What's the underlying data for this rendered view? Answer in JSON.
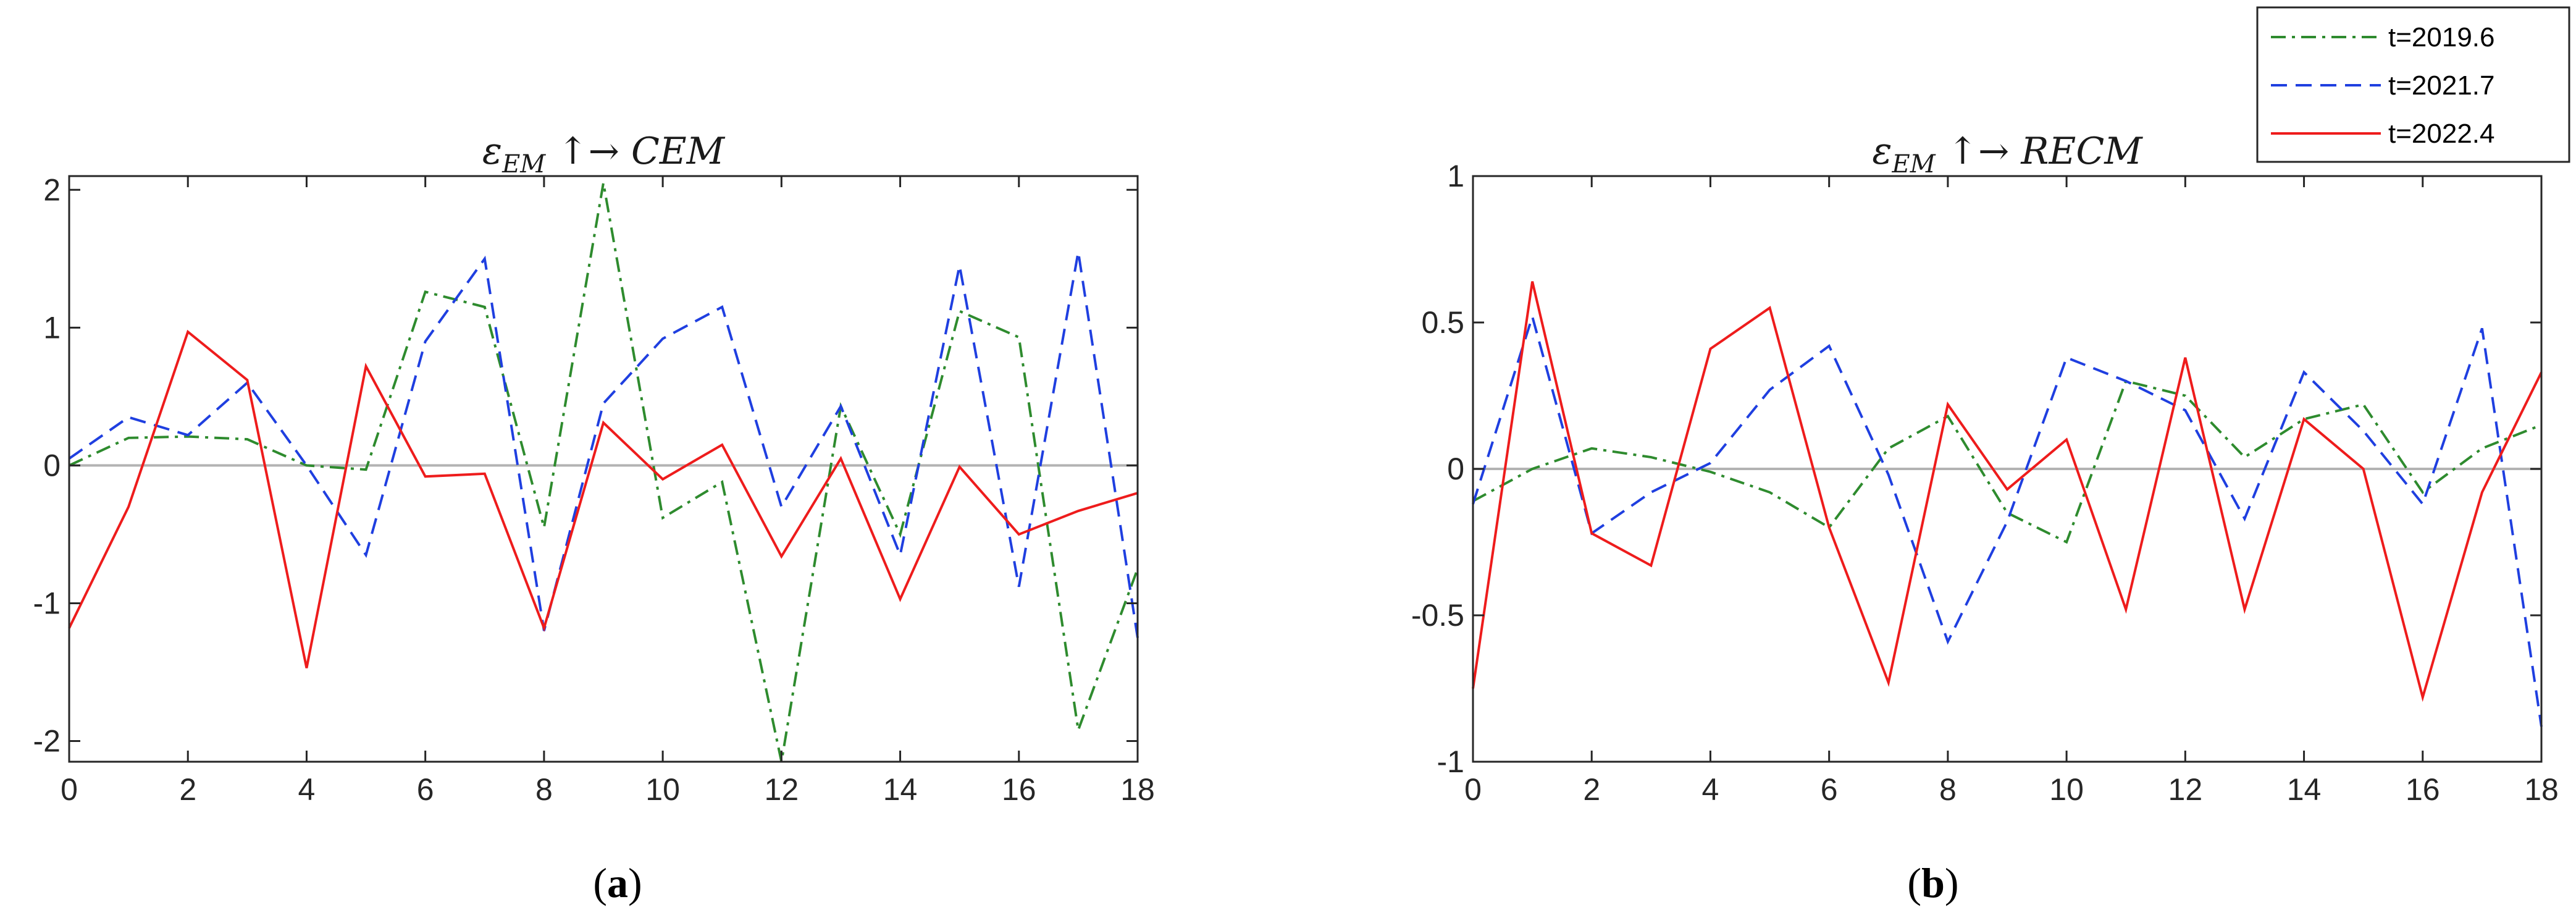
{
  "chart_data": [
    {
      "type": "line",
      "panel_label": "a",
      "title_main": "ε",
      "title_sub": "EM",
      "title_rest": " ↑→ CEM",
      "x": [
        0,
        1,
        2,
        3,
        4,
        5,
        6,
        7,
        8,
        9,
        10,
        11,
        12,
        13,
        14,
        15,
        16,
        17,
        18
      ],
      "xlim": [
        0,
        18
      ],
      "ylim": [
        -2.15,
        2.1
      ],
      "xticks": [
        0,
        2,
        4,
        6,
        8,
        10,
        12,
        14,
        16,
        18
      ],
      "yticks": [
        -2,
        -1,
        0,
        1,
        2
      ],
      "series": [
        {
          "name": "t=2019.6",
          "color": "#2e8b2e",
          "dash": "dashdot",
          "values": [
            0.0,
            0.2,
            0.21,
            0.19,
            0.0,
            -0.03,
            1.26,
            1.15,
            -0.45,
            2.05,
            -0.38,
            -0.12,
            -2.15,
            0.43,
            -0.5,
            1.12,
            0.93,
            -1.92,
            -0.75
          ]
        },
        {
          "name": "t=2021.7",
          "color": "#1f3fe0",
          "dash": "dashed",
          "values": [
            0.05,
            0.35,
            0.22,
            0.6,
            0.0,
            -0.65,
            0.9,
            1.5,
            -1.2,
            0.45,
            0.92,
            1.15,
            -0.3,
            0.43,
            -0.65,
            1.45,
            -0.88,
            1.55,
            -1.25
          ]
        },
        {
          "name": "t=2022.4",
          "color": "#ee1c1c",
          "dash": "solid",
          "values": [
            -1.18,
            -0.3,
            0.97,
            0.62,
            -1.47,
            0.72,
            -0.08,
            -0.06,
            -1.18,
            0.31,
            -0.1,
            0.15,
            -0.66,
            0.05,
            -0.97,
            -0.01,
            -0.5,
            -0.33,
            -0.2
          ]
        }
      ]
    },
    {
      "type": "line",
      "panel_label": "b",
      "title_main": "ε",
      "title_sub": "EM",
      "title_rest": " ↑→ RECM",
      "x": [
        0,
        1,
        2,
        3,
        4,
        5,
        6,
        7,
        8,
        9,
        10,
        11,
        12,
        13,
        14,
        15,
        16,
        17,
        18
      ],
      "xlim": [
        0,
        18
      ],
      "ylim": [
        -1,
        1
      ],
      "xticks": [
        0,
        2,
        4,
        6,
        8,
        10,
        12,
        14,
        16,
        18
      ],
      "yticks": [
        -1,
        -0.5,
        0,
        0.5,
        1
      ],
      "series": [
        {
          "name": "t=2019.6",
          "color": "#2e8b2e",
          "dash": "dashdot",
          "values": [
            -0.11,
            0.0,
            0.07,
            0.04,
            -0.01,
            -0.08,
            -0.2,
            0.07,
            0.18,
            -0.15,
            -0.25,
            0.3,
            0.25,
            0.04,
            0.17,
            0.22,
            -0.08,
            0.07,
            0.15
          ]
        },
        {
          "name": "t=2021.7",
          "color": "#1f3fe0",
          "dash": "dashed",
          "values": [
            -0.12,
            0.52,
            -0.22,
            -0.08,
            0.02,
            0.27,
            0.42,
            -0.02,
            -0.59,
            -0.18,
            0.38,
            0.3,
            0.2,
            -0.17,
            0.33,
            0.13,
            -0.12,
            0.48,
            -0.88
          ]
        },
        {
          "name": "t=2022.4",
          "color": "#ee1c1c",
          "dash": "solid",
          "values": [
            -0.75,
            0.64,
            -0.22,
            -0.33,
            0.41,
            0.55,
            -0.2,
            -0.73,
            0.22,
            -0.07,
            0.1,
            -0.48,
            0.38,
            -0.48,
            0.17,
            0.0,
            -0.78,
            -0.08,
            0.33
          ]
        }
      ]
    }
  ],
  "legend": [
    "t=2019.6",
    "t=2021.7",
    "t=2022.4"
  ],
  "captions": {
    "a": "a",
    "b": "b"
  }
}
